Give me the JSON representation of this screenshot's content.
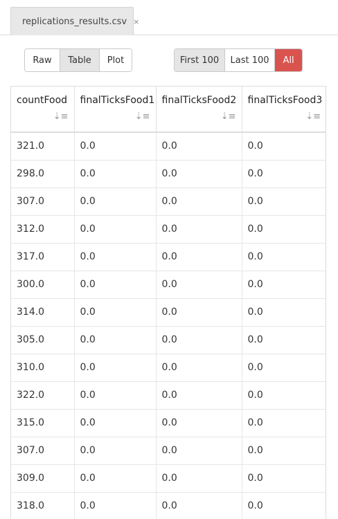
{
  "tab": {
    "label": "replications_results.csv",
    "close": "×"
  },
  "view_modes": [
    "Raw",
    "Table",
    "Plot"
  ],
  "active_view": "Table",
  "row_filters": [
    "First 100",
    "Last 100",
    "All"
  ],
  "active_filter": "First 100",
  "table": {
    "columns": [
      "countFood",
      "finalTicksFood1",
      "finalTicksFood2",
      "finalTicksFood3"
    ],
    "rows": [
      [
        "321.0",
        "0.0",
        "0.0",
        "0.0"
      ],
      [
        "298.0",
        "0.0",
        "0.0",
        "0.0"
      ],
      [
        "307.0",
        "0.0",
        "0.0",
        "0.0"
      ],
      [
        "312.0",
        "0.0",
        "0.0",
        "0.0"
      ],
      [
        "317.0",
        "0.0",
        "0.0",
        "0.0"
      ],
      [
        "300.0",
        "0.0",
        "0.0",
        "0.0"
      ],
      [
        "314.0",
        "0.0",
        "0.0",
        "0.0"
      ],
      [
        "305.0",
        "0.0",
        "0.0",
        "0.0"
      ],
      [
        "310.0",
        "0.0",
        "0.0",
        "0.0"
      ],
      [
        "322.0",
        "0.0",
        "0.0",
        "0.0"
      ],
      [
        "315.0",
        "0.0",
        "0.0",
        "0.0"
      ],
      [
        "307.0",
        "0.0",
        "0.0",
        "0.0"
      ],
      [
        "309.0",
        "0.0",
        "0.0",
        "0.0"
      ],
      [
        "318.0",
        "0.0",
        "0.0",
        "0.0"
      ]
    ]
  },
  "colors": {
    "danger": "#d9534f",
    "active_bg": "#e5e5e5"
  },
  "icons": {
    "sort": "sort-amount-icon"
  }
}
